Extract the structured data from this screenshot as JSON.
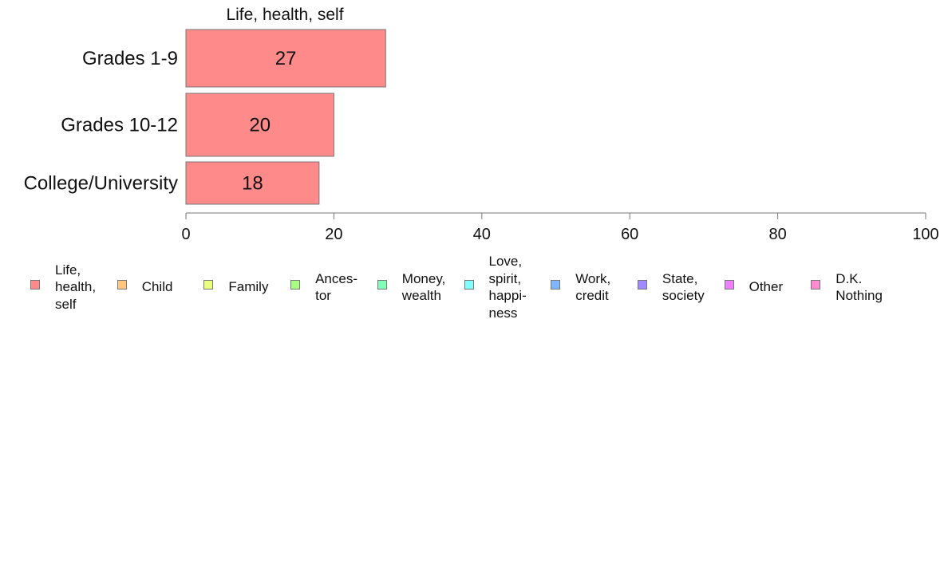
{
  "chart_data": {
    "type": "bar",
    "orientation": "horizontal",
    "title": "Life, health, self",
    "categories": [
      "Grades 1-9",
      "Grades 10-12",
      "College/University"
    ],
    "series": [
      {
        "name": "Life, health, self",
        "values": [
          27,
          20,
          18
        ]
      }
    ],
    "value_labels": [
      "27",
      "20",
      "18"
    ],
    "xlim": [
      0,
      100
    ],
    "xticks": [
      0,
      20,
      40,
      60,
      80,
      100
    ],
    "grid": false,
    "legend_position": "bottom"
  },
  "legend": [
    {
      "label": "Life,\nhealth,\nself",
      "color": "#ff8a8a"
    },
    {
      "label": "Child",
      "color": "#ffc680"
    },
    {
      "label": "Family",
      "color": "#eaff80"
    },
    {
      "label": "Ances-\ntor",
      "color": "#a6ff80"
    },
    {
      "label": "Money,\nwealth",
      "color": "#80ffb8"
    },
    {
      "label": "Love,\nspirit,\nhappi-\nness",
      "color": "#80ffff"
    },
    {
      "label": "Work,\ncredit",
      "color": "#80b4ff"
    },
    {
      "label": "State,\nsociety",
      "color": "#9f8aff"
    },
    {
      "label": "Other",
      "color": "#ee80ff"
    },
    {
      "label": "D.K.\nNothing",
      "color": "#ff8ad0"
    }
  ],
  "colors": {
    "bar": "#ff8a8a",
    "bar_border": "#777777",
    "axis": "#777777"
  }
}
